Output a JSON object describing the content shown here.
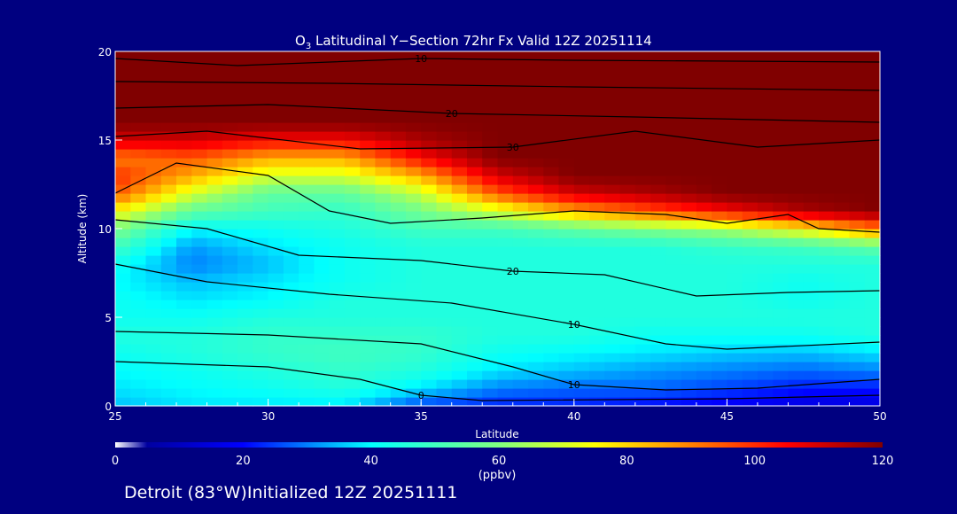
{
  "chart_data": {
    "type": "heatmap",
    "title_main": "O",
    "title_sub": "3",
    "title_rest": " Latitudinal Y−Section 72hr  Fx Valid 12Z 20251114",
    "xlabel": "Latitude",
    "ylabel": "Altitude (km)",
    "xlim": [
      25,
      50
    ],
    "ylim": [
      0,
      20
    ],
    "xticks": [
      "25",
      "30",
      "35",
      "40",
      "45",
      "50"
    ],
    "yticks": [
      "0",
      "5",
      "10",
      "15",
      "20"
    ],
    "x": [
      25,
      27.5,
      30,
      32.5,
      35,
      37.5,
      40,
      42.5,
      45,
      47.5,
      50
    ],
    "y": [
      0,
      1,
      2,
      3,
      4,
      5,
      6,
      7,
      8,
      9,
      10,
      11,
      12,
      13,
      14,
      15,
      16,
      17,
      18,
      19,
      20
    ],
    "z": [
      [
        35,
        38,
        38,
        38,
        25,
        22,
        22,
        20,
        18,
        15,
        15
      ],
      [
        38,
        40,
        42,
        45,
        38,
        30,
        28,
        28,
        25,
        22,
        22
      ],
      [
        40,
        42,
        45,
        48,
        45,
        38,
        35,
        32,
        30,
        28,
        30
      ],
      [
        42,
        45,
        48,
        50,
        48,
        42,
        40,
        38,
        36,
        35,
        38
      ],
      [
        45,
        45,
        48,
        48,
        48,
        45,
        45,
        42,
        42,
        42,
        45
      ],
      [
        42,
        42,
        45,
        45,
        45,
        45,
        45,
        45,
        45,
        45,
        45
      ],
      [
        42,
        38,
        40,
        45,
        45,
        45,
        45,
        45,
        45,
        42,
        45
      ],
      [
        40,
        35,
        38,
        42,
        45,
        45,
        45,
        45,
        45,
        42,
        45
      ],
      [
        42,
        30,
        35,
        42,
        45,
        45,
        45,
        45,
        45,
        45,
        45
      ],
      [
        50,
        32,
        38,
        42,
        45,
        45,
        45,
        45,
        48,
        50,
        55
      ],
      [
        60,
        40,
        42,
        45,
        50,
        50,
        55,
        60,
        65,
        75,
        90
      ],
      [
        75,
        55,
        50,
        48,
        58,
        70,
        85,
        95,
        105,
        115,
        120
      ],
      [
        95,
        70,
        55,
        55,
        68,
        95,
        110,
        115,
        120,
        120,
        120
      ],
      [
        100,
        85,
        70,
        70,
        85,
        110,
        120,
        120,
        120,
        120,
        120
      ],
      [
        90,
        95,
        85,
        85,
        105,
        120,
        120,
        120,
        120,
        120,
        120
      ],
      [
        110,
        110,
        105,
        105,
        115,
        120,
        120,
        120,
        120,
        120,
        120
      ],
      [
        120,
        120,
        120,
        120,
        120,
        120,
        120,
        120,
        120,
        120,
        120
      ],
      [
        120,
        120,
        120,
        120,
        120,
        120,
        120,
        120,
        120,
        120,
        120
      ],
      [
        120,
        120,
        120,
        120,
        120,
        120,
        120,
        120,
        120,
        120,
        120
      ],
      [
        120,
        120,
        120,
        120,
        120,
        120,
        120,
        120,
        120,
        120,
        120
      ],
      [
        120,
        120,
        120,
        120,
        120,
        120,
        120,
        120,
        120,
        120,
        120
      ]
    ],
    "contours": [
      {
        "label": "10",
        "pts": [
          [
            25,
            8
          ],
          [
            28,
            7
          ],
          [
            32,
            6.3
          ],
          [
            36,
            5.8
          ],
          [
            40,
            4.6
          ],
          [
            43,
            3.5
          ],
          [
            45,
            3.2
          ],
          [
            50,
            3.6
          ]
        ]
      },
      {
        "label": "20",
        "pts": [
          [
            25,
            10.5
          ],
          [
            28,
            10
          ],
          [
            31,
            8.5
          ],
          [
            35,
            8.2
          ],
          [
            38,
            7.6
          ],
          [
            41,
            7.4
          ],
          [
            44,
            6.2
          ],
          [
            47,
            6.4
          ],
          [
            50,
            6.5
          ]
        ]
      },
      {
        "label": "",
        "pts": [
          [
            25,
            12
          ],
          [
            27,
            13.7
          ],
          [
            30,
            13
          ],
          [
            32,
            11
          ],
          [
            34,
            10.3
          ],
          [
            37,
            10.6
          ],
          [
            40,
            11
          ],
          [
            43,
            10.8
          ],
          [
            45,
            10.3
          ],
          [
            47,
            10.8
          ],
          [
            48,
            10
          ],
          [
            50,
            9.8
          ]
        ]
      },
      {
        "label": "30",
        "pts": [
          [
            25,
            15.2
          ],
          [
            28,
            15.5
          ],
          [
            33,
            14.5
          ],
          [
            38,
            14.6
          ],
          [
            42,
            15.5
          ],
          [
            46,
            14.6
          ],
          [
            50,
            15
          ]
        ]
      },
      {
        "label": "20",
        "pts": [
          [
            25,
            16.8
          ],
          [
            30,
            17
          ],
          [
            36,
            16.5
          ],
          [
            42,
            16.3
          ],
          [
            50,
            16
          ]
        ]
      },
      {
        "label": "",
        "pts": [
          [
            25,
            18.3
          ],
          [
            32,
            18.2
          ],
          [
            40,
            18
          ],
          [
            50,
            17.8
          ]
        ]
      },
      {
        "label": "10",
        "pts": [
          [
            25,
            19.6
          ],
          [
            29,
            19.2
          ],
          [
            35,
            19.6
          ],
          [
            40,
            19.5
          ],
          [
            50,
            19.4
          ]
        ]
      },
      {
        "label": "10",
        "pts": [
          [
            25,
            4.2
          ],
          [
            30,
            4
          ],
          [
            35,
            3.5
          ],
          [
            38,
            2.2
          ],
          [
            40,
            1.2
          ],
          [
            43,
            0.9
          ],
          [
            46,
            1
          ],
          [
            50,
            1.5
          ]
        ]
      },
      {
        "label": "0",
        "pts": [
          [
            25,
            2.5
          ],
          [
            30,
            2.2
          ],
          [
            33,
            1.5
          ],
          [
            35,
            0.6
          ],
          [
            37,
            0.3
          ],
          [
            45,
            0.4
          ],
          [
            50,
            0.6
          ]
        ]
      }
    ],
    "colorbar": {
      "ticks": [
        "0",
        "20",
        "40",
        "60",
        "80",
        "100",
        "120"
      ],
      "label": "(ppbv)",
      "range": [
        0,
        120
      ]
    }
  },
  "footer": "Detroit (83°W)Initialized 12Z 20251111"
}
